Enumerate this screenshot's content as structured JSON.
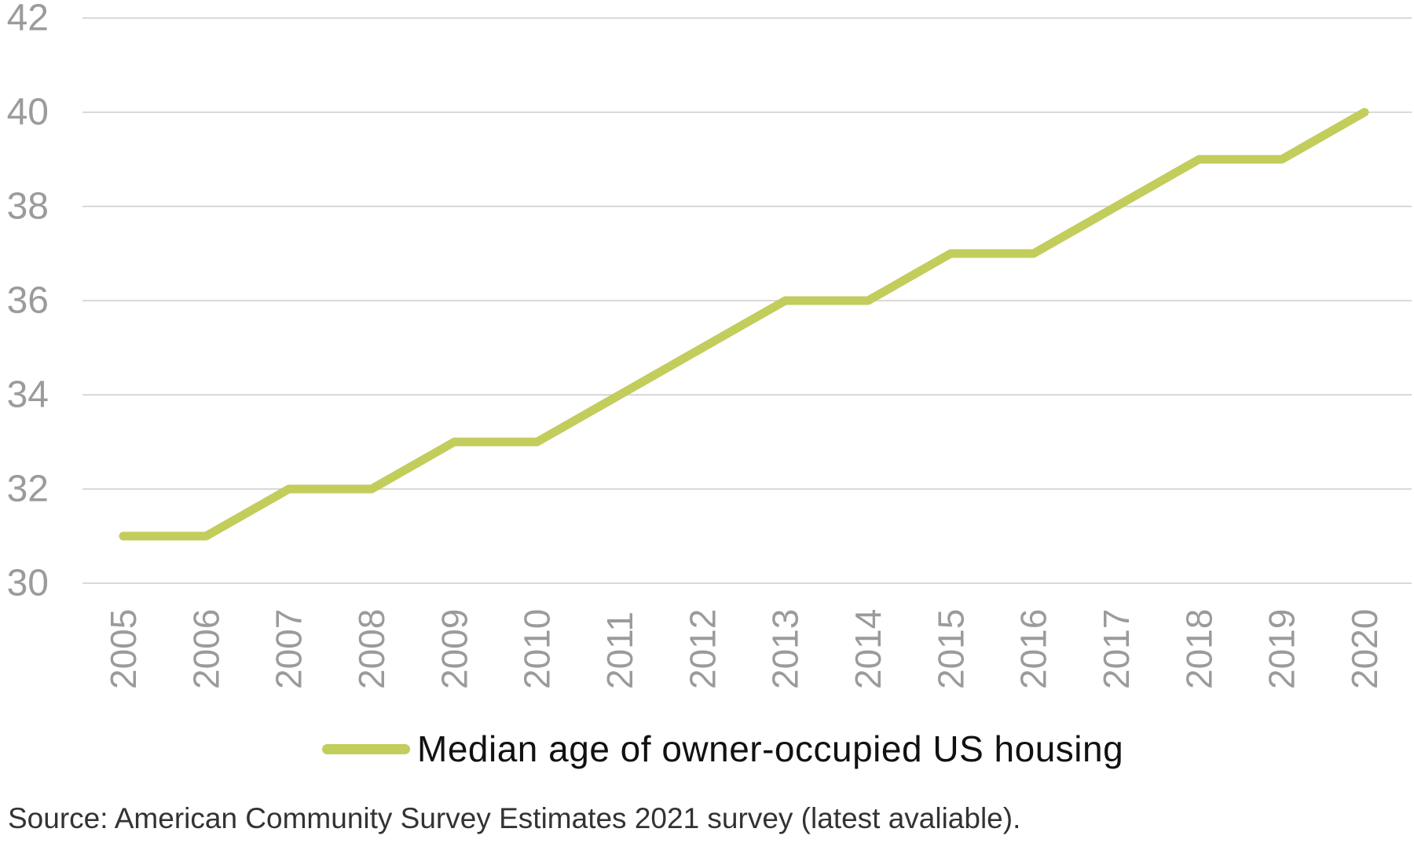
{
  "chart_data": {
    "type": "line",
    "title": "",
    "xlabel": "",
    "ylabel": "",
    "categories": [
      "2005",
      "2006",
      "2007",
      "2008",
      "2009",
      "2010",
      "2011",
      "2012",
      "2013",
      "2014",
      "2015",
      "2016",
      "2017",
      "2018",
      "2019",
      "2020"
    ],
    "series": [
      {
        "name": "Median age of owner-occupied US housing",
        "values": [
          31,
          31,
          32,
          32,
          33,
          33,
          34,
          35,
          36,
          36,
          37,
          37,
          38,
          39,
          39,
          40
        ]
      }
    ],
    "ylim": [
      30,
      42
    ],
    "yticks": [
      30,
      32,
      34,
      36,
      38,
      40,
      42
    ],
    "grid": "horizontal-only",
    "legend_position": "bottom-center",
    "colors": {
      "line": "#c2cd5c",
      "gridline": "#d9d9d9",
      "tick_labels": "#9b9b9b",
      "legend_text": "#111111",
      "source_text": "#333333",
      "background": "#ffffff"
    }
  },
  "legend": {
    "label": "Median age of owner-occupied US housing"
  },
  "source": {
    "text": "Source: American Community Survey Estimates 2021 survey (latest avaliable)."
  }
}
